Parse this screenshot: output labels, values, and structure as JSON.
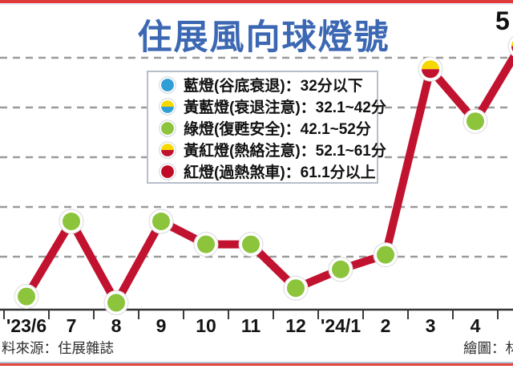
{
  "title": {
    "text": "住展風向球燈號",
    "color": "#3c68b3"
  },
  "annotation": {
    "text": "5",
    "note_color": "#111111"
  },
  "legend": {
    "items": [
      {
        "light": "blue",
        "label": "藍燈(谷底衰退)：32分以下",
        "colors": [
          "#2f9ed6",
          "#2f9ed6"
        ]
      },
      {
        "light": "yellow-blue",
        "label": "黃藍燈(衰退注意)：32.1~42分",
        "colors": [
          "#f6d800",
          "#2f9ed6"
        ]
      },
      {
        "light": "green",
        "label": "綠燈(復甦安全)：42.1~52分",
        "colors": [
          "#8cc43c",
          "#8cc43c"
        ]
      },
      {
        "light": "yellow-red",
        "label": "黃紅燈(熱絡注意)：52.1~61分",
        "colors": [
          "#f6d800",
          "#c1122f"
        ]
      },
      {
        "light": "red",
        "label": "紅燈(過熱煞車)：61.1分以上",
        "colors": [
          "#c00b27",
          "#c00b27"
        ]
      }
    ]
  },
  "chart_data": {
    "type": "line",
    "title": "住展風向球燈號",
    "x_axis_labels": [
      "'23/6",
      "7",
      "8",
      "9",
      "10",
      "11",
      "12",
      "'24/1",
      "2",
      "3",
      "4"
    ],
    "points": [
      {
        "month": "'23/6",
        "score": 42.4,
        "light": "green"
      },
      {
        "month": "7",
        "score": 46.0,
        "light": "green"
      },
      {
        "month": "8",
        "score": 42.1,
        "light": "green"
      },
      {
        "month": "9",
        "score": 46.0,
        "light": "green"
      },
      {
        "month": "10",
        "score": 44.9,
        "light": "green"
      },
      {
        "month": "11",
        "score": 44.9,
        "light": "green"
      },
      {
        "month": "12",
        "score": 42.8,
        "light": "green"
      },
      {
        "month": "'24/1",
        "score": 43.7,
        "light": "green"
      },
      {
        "month": "2",
        "score": 44.4,
        "light": "green"
      },
      {
        "month": "3",
        "score": 53.3,
        "light": "yellow-red"
      },
      {
        "month": "4",
        "score": 50.8,
        "light": "green"
      },
      {
        "month": "",
        "score": 54.4,
        "light": "yellow-red"
      }
    ],
    "lights": {
      "green": [
        "#8cc43c",
        "#8cc43c"
      ],
      "yellow-red": [
        "#f6d800",
        "#c1122f"
      ]
    },
    "line_color": "#c1122f",
    "layout": {
      "gridlines": "dashed-horizontal",
      "y_axis_labels": "hidden",
      "legend_position": "upper-left-inside",
      "last_point_clipped_at_right_edge": true
    }
  },
  "footer": {
    "source": "料來源：住展雜誌",
    "credit": "繪圖：林"
  }
}
